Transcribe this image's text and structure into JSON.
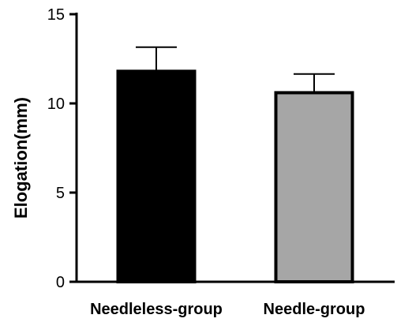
{
  "chart_data": {
    "type": "bar",
    "categories": [
      "Needleless-group",
      "Needle-group"
    ],
    "values": [
      11.8,
      10.6
    ],
    "error_upper": [
      1.35,
      1.05
    ],
    "ylabel": "Elogation(mm)",
    "xlabel": "",
    "ylim": [
      0,
      15
    ],
    "yticks": [
      0,
      5,
      10,
      15
    ],
    "ytick_labels": [
      "0",
      "5",
      "10",
      "15"
    ],
    "bar_colors": [
      "#000000",
      "#a6a6a6"
    ],
    "bar_edge_color": "#000000",
    "grid": false,
    "legend": "none"
  }
}
